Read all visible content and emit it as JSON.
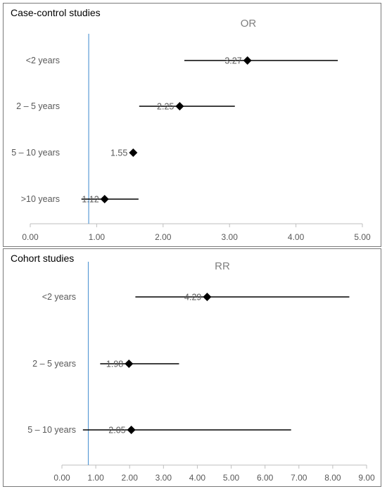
{
  "chart_data": [
    {
      "type": "forest",
      "panel_title": "Case-control studies",
      "measure_label": "OR",
      "xlim": [
        0,
        5
      ],
      "x_ticks": [
        "0.00",
        "1.00",
        "2.00",
        "3.00",
        "4.00",
        "5.00"
      ],
      "reference_line": 0.88,
      "categories": [
        "<2 years",
        "2 – 5 years",
        "5 – 10 years",
        ">10 years"
      ],
      "points": [
        {
          "label": "<2 years",
          "value": 3.27,
          "value_text": "3.27",
          "ci_low": 2.32,
          "ci_high": 4.63
        },
        {
          "label": "2 – 5 years",
          "value": 2.25,
          "value_text": "2.25",
          "ci_low": 1.64,
          "ci_high": 3.08
        },
        {
          "label": "5 – 10 years",
          "value": 1.55,
          "value_text": "1.55",
          "ci_low": null,
          "ci_high": null
        },
        {
          "label": ">10 years",
          "value": 1.12,
          "value_text": "1.12",
          "ci_low": 0.77,
          "ci_high": 1.63
        }
      ]
    },
    {
      "type": "forest",
      "panel_title": "Cohort studies",
      "measure_label": "RR",
      "xlim": [
        0,
        9
      ],
      "x_ticks": [
        "0.00",
        "1.00",
        "2.00",
        "3.00",
        "4.00",
        "5.00",
        "6.00",
        "7.00",
        "8.00",
        "9.00"
      ],
      "reference_line": 0.78,
      "categories": [
        "<2 years",
        "2  – 5 years",
        "5 – 10 years"
      ],
      "points": [
        {
          "label": "<2 years",
          "value": 4.29,
          "value_text": "4.29",
          "ci_low": 2.17,
          "ci_high": 8.49
        },
        {
          "label": "2  – 5 years",
          "value": 1.98,
          "value_text": "1.98",
          "ci_low": 1.13,
          "ci_high": 3.46
        },
        {
          "label": "5 – 10 years",
          "value": 2.05,
          "value_text": "2.05",
          "ci_low": 0.62,
          "ci_high": 6.77
        }
      ]
    }
  ],
  "colors": {
    "marker": "#000000",
    "ci_line": "#000000",
    "reference_line": "#5b9bd5",
    "axis": "#bfbfbf",
    "tick_text": "#595959",
    "value_text": "#595959",
    "measure_text": "#7f7f7f"
  }
}
